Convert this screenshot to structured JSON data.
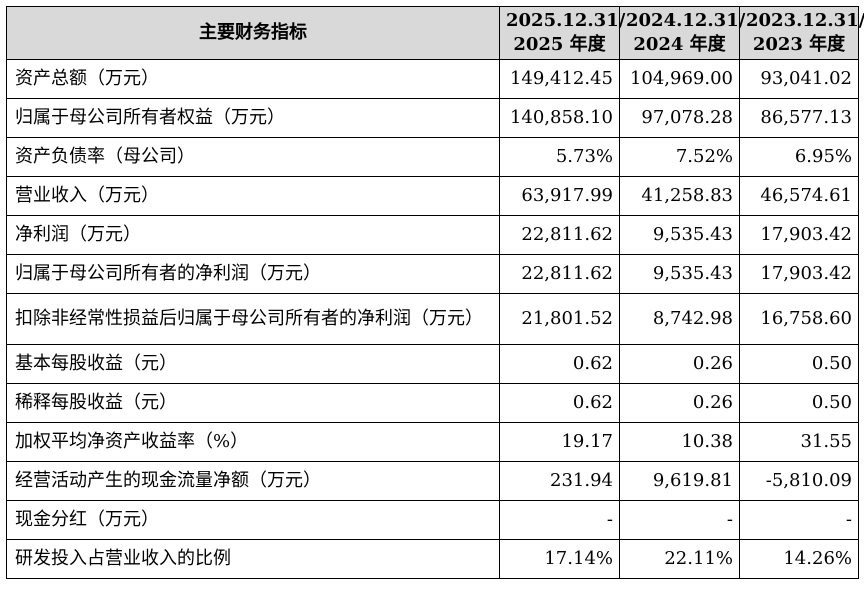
{
  "header": {
    "metric": "主要财务指标",
    "periods": [
      {
        "line1": "2025.12.31/",
        "line2": "2025 年度"
      },
      {
        "line1": "2024.12.31/",
        "line2": "2024 年度"
      },
      {
        "line1": "2023.12.31/",
        "line2": "2023 年度"
      }
    ]
  },
  "rows": [
    {
      "label": "资产总额（万元）",
      "values": [
        "149,412.45",
        "104,969.00",
        "93,041.02"
      ]
    },
    {
      "label": "归属于母公司所有者权益（万元）",
      "values": [
        "140,858.10",
        "97,078.28",
        "86,577.13"
      ]
    },
    {
      "label": "资产负债率（母公司）",
      "values": [
        "5.73%",
        "7.52%",
        "6.95%"
      ]
    },
    {
      "label": "营业收入（万元）",
      "values": [
        "63,917.99",
        "41,258.83",
        "46,574.61"
      ]
    },
    {
      "label": "净利润（万元）",
      "values": [
        "22,811.62",
        "9,535.43",
        "17,903.42"
      ]
    },
    {
      "label": "归属于母公司所有者的净利润（万元）",
      "values": [
        "22,811.62",
        "9,535.43",
        "17,903.42"
      ]
    },
    {
      "label": "扣除非经常性损益后归属于母公司所有者的净利润（万元）",
      "values": [
        "21,801.52",
        "8,742.98",
        "16,758.60"
      ]
    },
    {
      "label": "基本每股收益（元）",
      "values": [
        "0.62",
        "0.26",
        "0.50"
      ]
    },
    {
      "label": "稀释每股收益（元）",
      "values": [
        "0.62",
        "0.26",
        "0.50"
      ]
    },
    {
      "label": "加权平均净资产收益率（%）",
      "values": [
        "19.17",
        "10.38",
        "31.55"
      ]
    },
    {
      "label": "经营活动产生的现金流量净额（万元）",
      "values": [
        "231.94",
        "9,619.81",
        "-5,810.09"
      ]
    },
    {
      "label": "现金分红（万元）",
      "values": [
        "-",
        "-",
        "-"
      ]
    },
    {
      "label": "研发投入占营业收入的比例",
      "values": [
        "17.14%",
        "22.11%",
        "14.26%"
      ]
    }
  ]
}
